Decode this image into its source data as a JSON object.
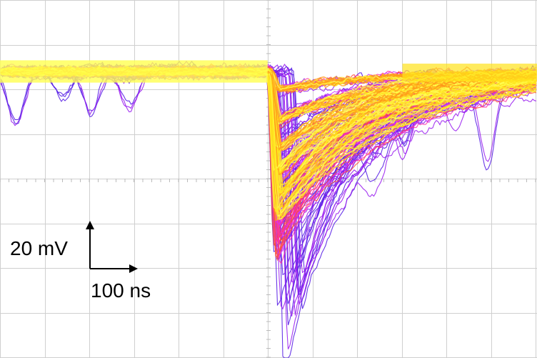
{
  "chart_data": {
    "type": "line",
    "title": "",
    "xlabel": "",
    "ylabel": "",
    "x_unit": "ns",
    "y_unit": "mV",
    "grid": true,
    "grid_divisions": {
      "x": 12,
      "y": 8
    },
    "scale_bars": {
      "vertical": {
        "value": 20,
        "unit": "mV",
        "label": "20 mV"
      },
      "horizontal": {
        "value": 100,
        "unit": "ns",
        "label": "100 ns"
      }
    },
    "xlim": [
      -600,
      600
    ],
    "ylim": [
      -130,
      30
    ],
    "trigger_time": 0,
    "baseline_mV": 0,
    "pulse_family_peaks_mV": [
      -8,
      -22,
      -35,
      -45,
      -55,
      -64,
      -72,
      -81,
      -90,
      -104,
      -120
    ],
    "pulse_timing": {
      "rise_ns": 15,
      "peak_time_ns": 5,
      "decay_ns": 210
    },
    "persistence_colors": [
      "#5a22e6",
      "#9b22f0",
      "#cc33ff",
      "#ff2fa8",
      "#ff4f3a",
      "#ff9a1a",
      "#ffe31a",
      "#ffff50"
    ],
    "baseline_dips": [
      {
        "t_ns": -565,
        "depth_mV": -24
      },
      {
        "t_ns": -460,
        "depth_mV": -11
      },
      {
        "t_ns": -398,
        "depth_mV": -18
      },
      {
        "t_ns": -310,
        "depth_mV": -16
      },
      {
        "t_ns": 140,
        "depth_mV": -40
      },
      {
        "t_ns": 240,
        "depth_mV": -18
      },
      {
        "t_ns": 305,
        "depth_mV": -22
      },
      {
        "t_ns": 420,
        "depth_mV": -14
      },
      {
        "t_ns": 490,
        "depth_mV": -38
      }
    ]
  }
}
